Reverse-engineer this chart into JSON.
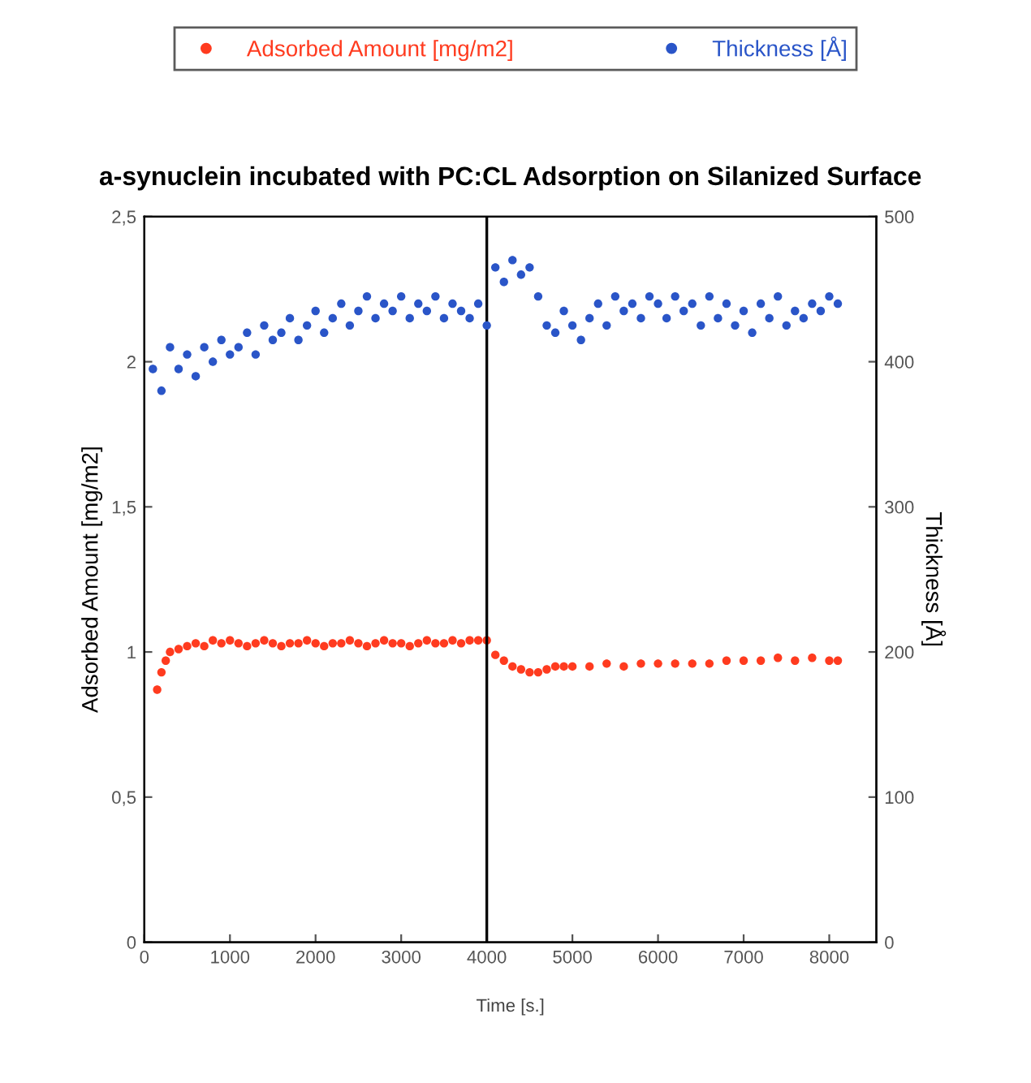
{
  "chart_data": {
    "type": "scatter",
    "title": "a-synuclein incubated with PC:CL Adsorption on Silanized Surface",
    "xlabel": "Time [s.]",
    "ylabel": "Adsorbed Amount [mg/m2]",
    "y2label": "Thickness [Å]",
    "xlim": [
      0,
      8550
    ],
    "xticks": [
      0,
      1000,
      2000,
      3000,
      4000,
      5000,
      6000,
      7000,
      8000
    ],
    "ylim": [
      0,
      2.5
    ],
    "yticks": [
      0,
      {
        "value": 0.5,
        "label": "0,5"
      },
      1,
      {
        "value": 1.5,
        "label": "1,5"
      },
      2,
      {
        "value": 2.5,
        "label": "2,5"
      }
    ],
    "y2lim": [
      0,
      500
    ],
    "y2ticks": [
      0,
      100,
      200,
      300,
      400,
      500
    ],
    "marker": "circle",
    "legend": "top",
    "grid": false,
    "ref_lines": [
      {
        "axis": "x",
        "value": 4000,
        "color": "#000000"
      }
    ],
    "series": [
      {
        "name": "Adsorbed Amount [mg/m2]",
        "color": "#ff3b1f",
        "axis": "y",
        "x": [
          150,
          200,
          250,
          300,
          400,
          500,
          600,
          700,
          800,
          900,
          1000,
          1100,
          1200,
          1300,
          1400,
          1500,
          1600,
          1700,
          1800,
          1900,
          2000,
          2100,
          2200,
          2300,
          2400,
          2500,
          2600,
          2700,
          2800,
          2900,
          3000,
          3100,
          3200,
          3300,
          3400,
          3500,
          3600,
          3700,
          3800,
          3900,
          4000,
          4100,
          4200,
          4300,
          4400,
          4500,
          4600,
          4700,
          4800,
          4900,
          5000,
          5200,
          5400,
          5600,
          5800,
          6000,
          6200,
          6400,
          6600,
          6800,
          7000,
          7200,
          7400,
          7600,
          7800,
          8000,
          8100
        ],
        "values": [
          0.87,
          0.93,
          0.97,
          1.0,
          1.01,
          1.02,
          1.03,
          1.02,
          1.04,
          1.03,
          1.04,
          1.03,
          1.02,
          1.03,
          1.04,
          1.03,
          1.02,
          1.03,
          1.03,
          1.04,
          1.03,
          1.02,
          1.03,
          1.03,
          1.04,
          1.03,
          1.02,
          1.03,
          1.04,
          1.03,
          1.03,
          1.02,
          1.03,
          1.04,
          1.03,
          1.03,
          1.04,
          1.03,
          1.04,
          1.04,
          1.04,
          0.99,
          0.97,
          0.95,
          0.94,
          0.93,
          0.93,
          0.94,
          0.95,
          0.95,
          0.95,
          0.95,
          0.96,
          0.95,
          0.96,
          0.96,
          0.96,
          0.96,
          0.96,
          0.97,
          0.97,
          0.97,
          0.98,
          0.97,
          0.98,
          0.97,
          0.97
        ]
      },
      {
        "name": "Thickness [Å]",
        "color": "#2a55c8",
        "axis": "y2",
        "x": [
          100,
          200,
          300,
          400,
          500,
          600,
          700,
          800,
          900,
          1000,
          1100,
          1200,
          1300,
          1400,
          1500,
          1600,
          1700,
          1800,
          1900,
          2000,
          2100,
          2200,
          2300,
          2400,
          2500,
          2600,
          2700,
          2800,
          2900,
          3000,
          3100,
          3200,
          3300,
          3400,
          3500,
          3600,
          3700,
          3800,
          3900,
          4000,
          4100,
          4200,
          4300,
          4400,
          4500,
          4600,
          4700,
          4800,
          4900,
          5000,
          5100,
          5200,
          5300,
          5400,
          5500,
          5600,
          5700,
          5800,
          5900,
          6000,
          6100,
          6200,
          6300,
          6400,
          6500,
          6600,
          6700,
          6800,
          6900,
          7000,
          7100,
          7200,
          7300,
          7400,
          7500,
          7600,
          7700,
          7800,
          7900,
          8000,
          8100
        ],
        "values": [
          395,
          380,
          410,
          395,
          405,
          390,
          410,
          400,
          415,
          405,
          410,
          420,
          405,
          425,
          415,
          420,
          430,
          415,
          425,
          435,
          420,
          430,
          440,
          425,
          435,
          445,
          430,
          440,
          435,
          445,
          430,
          440,
          435,
          445,
          430,
          440,
          435,
          430,
          440,
          425,
          465,
          455,
          470,
          460,
          465,
          445,
          425,
          420,
          435,
          425,
          415,
          430,
          440,
          425,
          445,
          435,
          440,
          430,
          445,
          440,
          430,
          445,
          435,
          440,
          425,
          445,
          430,
          440,
          425,
          435,
          420,
          440,
          430,
          445,
          425,
          435,
          430,
          440,
          435,
          445,
          440
        ]
      }
    ]
  }
}
